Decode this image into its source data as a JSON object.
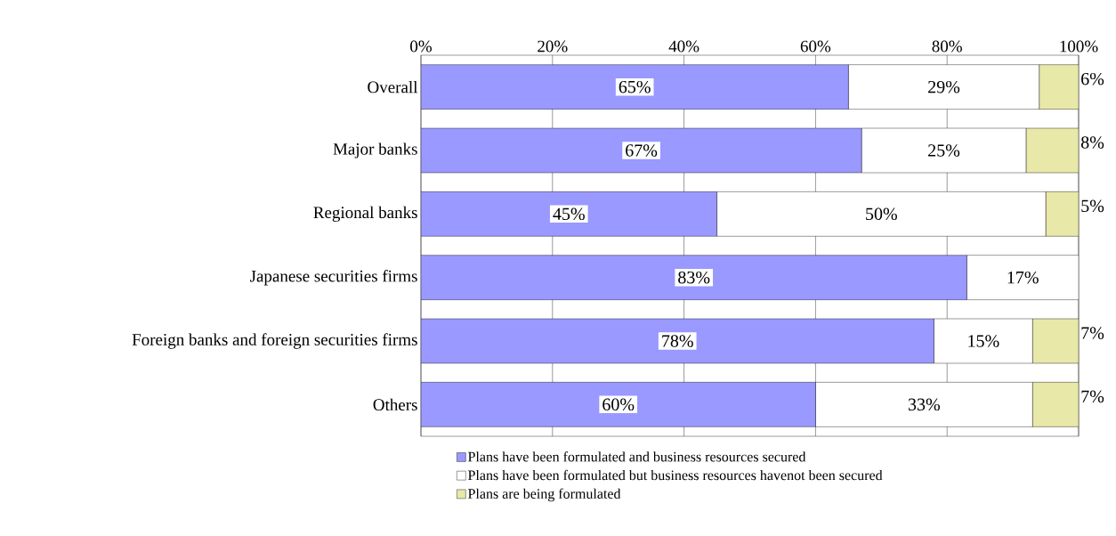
{
  "chart_data": {
    "type": "bar",
    "orientation": "horizontal",
    "stacked": true,
    "categories": [
      "Overall",
      "Major banks",
      "Regional banks",
      "Japanese securities firms",
      "Foreign banks and foreign securities firms",
      "Others"
    ],
    "series": [
      {
        "name": "Plans have been formulated and business resources secured",
        "color": "#9999ff",
        "values": [
          65,
          67,
          45,
          83,
          78,
          60
        ],
        "value_labels": [
          "65%",
          "67%",
          "45%",
          "83%",
          "78%",
          "60%"
        ]
      },
      {
        "name": "Plans have been formulated but business resources havenot been secured",
        "color": "#ffffff",
        "values": [
          29,
          25,
          50,
          17,
          15,
          33
        ],
        "value_labels": [
          "29%",
          "25%",
          "50%",
          "17%",
          "15%",
          "33%"
        ]
      },
      {
        "name": "Plans are being formulated",
        "color": "#e8e8a8",
        "values": [
          6,
          8,
          5,
          null,
          7,
          7
        ],
        "value_labels": [
          "6%",
          "8%",
          "5%",
          null,
          "7%",
          "7%"
        ]
      }
    ],
    "xlim": [
      0,
      100
    ],
    "xticks": [
      {
        "value": 0,
        "label": "0%"
      },
      {
        "value": 20,
        "label": "20%"
      },
      {
        "value": 40,
        "label": "40%"
      },
      {
        "value": 60,
        "label": "60%"
      },
      {
        "value": 80,
        "label": "80%"
      },
      {
        "value": 100,
        "label": "100%"
      }
    ],
    "grid": "x",
    "legend": "bottom"
  }
}
